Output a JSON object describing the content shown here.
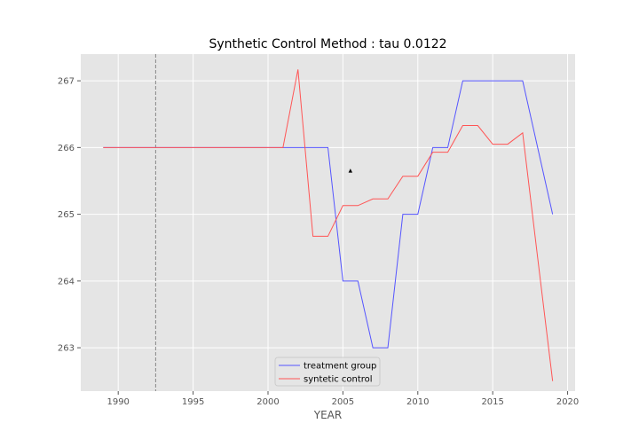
{
  "chart_data": {
    "type": "line",
    "title": "Synthetic Control Method : tau 0.0122",
    "xlabel": "YEAR",
    "ylabel": "",
    "xlim": [
      1987.5,
      2020.5
    ],
    "ylim": [
      262.35,
      267.4
    ],
    "xticks": [
      1990,
      1995,
      2000,
      2005,
      2010,
      2015,
      2020
    ],
    "yticks": [
      263,
      264,
      265,
      266,
      267
    ],
    "grid": true,
    "legend_position": "bottom-center",
    "vline_x": 1992.5,
    "marker": {
      "x": 2005.5,
      "y": 265.65
    },
    "series": [
      {
        "name": "treatment group",
        "color": "#5555ff",
        "x": [
          1989,
          1990,
          1991,
          1992,
          1993,
          1994,
          1995,
          1996,
          1997,
          1998,
          1999,
          2000,
          2001,
          2002,
          2003,
          2004,
          2005,
          2006,
          2007,
          2008,
          2009,
          2010,
          2011,
          2012,
          2013,
          2014,
          2015,
          2016,
          2017,
          2018,
          2019
        ],
        "y": [
          266,
          266,
          266,
          266,
          266,
          266,
          266,
          266,
          266,
          266,
          266,
          266,
          266,
          266,
          266,
          266,
          264,
          264,
          263,
          263,
          265,
          265,
          266,
          266,
          267,
          267,
          267,
          267,
          267,
          266,
          265
        ]
      },
      {
        "name": "syntetic control",
        "color": "#ff5555",
        "x": [
          1989,
          1990,
          1991,
          1992,
          1993,
          1994,
          1995,
          1996,
          1997,
          1998,
          1999,
          2000,
          2001,
          2002,
          2003,
          2004,
          2005,
          2006,
          2007,
          2008,
          2009,
          2010,
          2011,
          2012,
          2013,
          2014,
          2015,
          2016,
          2017,
          2018,
          2019
        ],
        "y": [
          266,
          266,
          266,
          266,
          266,
          266,
          266,
          266,
          266,
          266,
          266,
          266,
          266,
          267.17,
          264.67,
          264.67,
          265.13,
          265.13,
          265.23,
          265.23,
          265.57,
          265.57,
          265.93,
          265.93,
          266.33,
          266.33,
          266.05,
          266.05,
          266.22,
          264.35,
          262.5
        ]
      }
    ]
  }
}
